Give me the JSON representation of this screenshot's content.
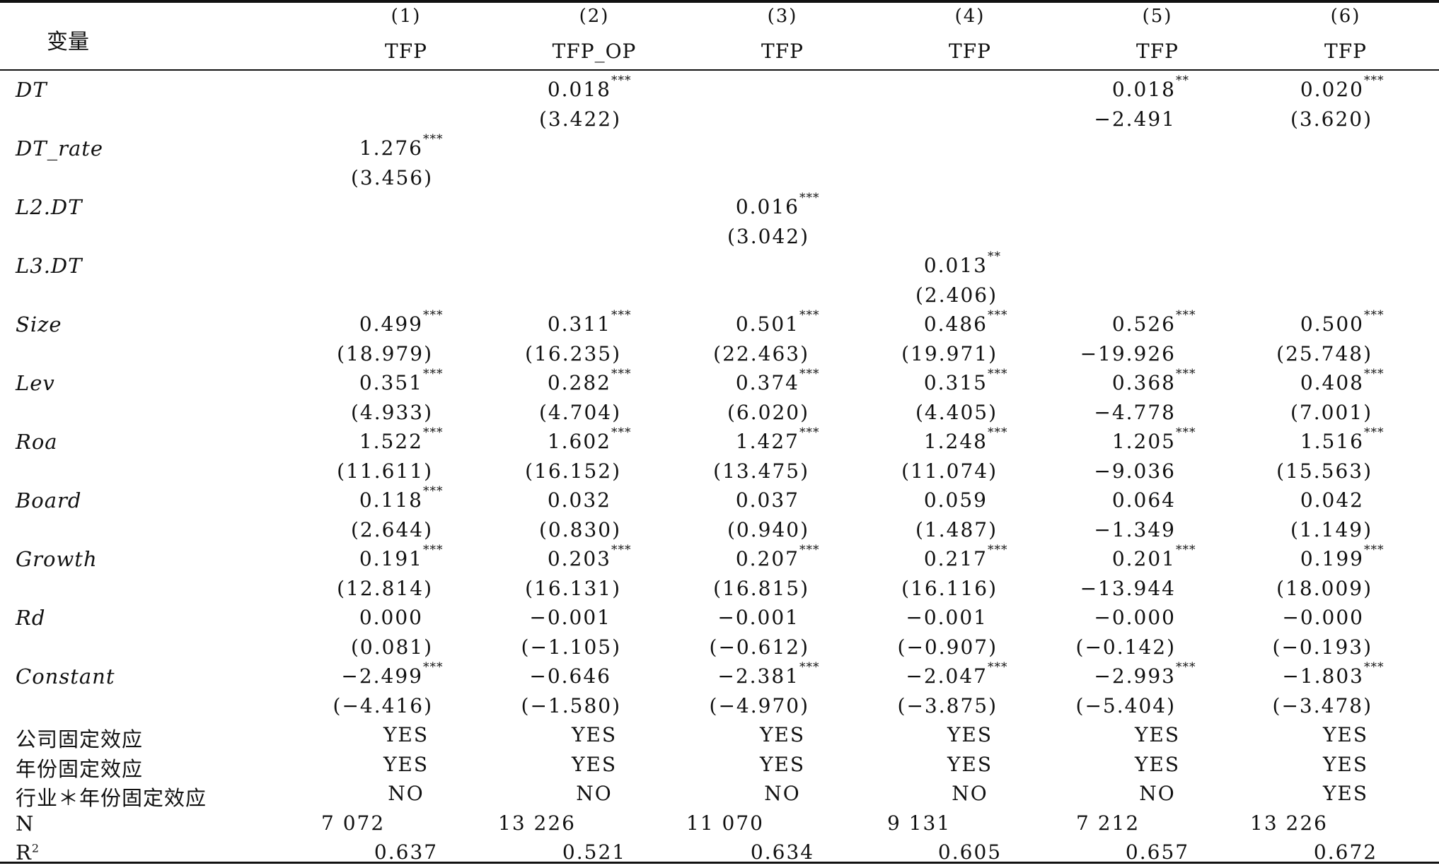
{
  "header": {
    "variable_label": "变量",
    "columns": [
      {
        "num": "(1)",
        "name": "TFP"
      },
      {
        "num": "(2)",
        "name": "TFP_OP"
      },
      {
        "num": "(3)",
        "name": "TFP"
      },
      {
        "num": "(4)",
        "name": "TFP"
      },
      {
        "num": "(5)",
        "name": "TFP"
      },
      {
        "num": "(6)",
        "name": "TFP"
      }
    ]
  },
  "rows": [
    {
      "label": "DT",
      "coef": [
        "",
        "0.018",
        "",
        "",
        "0.018",
        "0.020"
      ],
      "stars": [
        "",
        "***",
        "",
        "",
        "**",
        "***"
      ],
      "tstat": [
        "",
        "(3.422)",
        "",
        "",
        "−2.491",
        "(3.620)"
      ]
    },
    {
      "label": "DT_rate",
      "coef": [
        "1.276",
        "",
        "",
        "",
        "",
        ""
      ],
      "stars": [
        "***",
        "",
        "",
        "",
        "",
        ""
      ],
      "tstat": [
        "(3.456)",
        "",
        "",
        "",
        "",
        ""
      ]
    },
    {
      "label": "L2.DT",
      "coef": [
        "",
        "",
        "0.016",
        "",
        "",
        ""
      ],
      "stars": [
        "",
        "",
        "***",
        "",
        "",
        ""
      ],
      "tstat": [
        "",
        "",
        "(3.042)",
        "",
        "",
        ""
      ]
    },
    {
      "label": "L3.DT",
      "coef": [
        "",
        "",
        "",
        "0.013",
        "",
        ""
      ],
      "stars": [
        "",
        "",
        "",
        "**",
        "",
        ""
      ],
      "tstat": [
        "",
        "",
        "",
        "(2.406)",
        "",
        ""
      ]
    },
    {
      "label": "Size",
      "coef": [
        "0.499",
        "0.311",
        "0.501",
        "0.486",
        "0.526",
        "0.500"
      ],
      "stars": [
        "***",
        "***",
        "***",
        "***",
        "***",
        "***"
      ],
      "tstat": [
        "(18.979)",
        "(16.235)",
        "(22.463)",
        "(19.971)",
        "−19.926",
        "(25.748)"
      ]
    },
    {
      "label": "Lev",
      "coef": [
        "0.351",
        "0.282",
        "0.374",
        "0.315",
        "0.368",
        "0.408"
      ],
      "stars": [
        "***",
        "***",
        "***",
        "***",
        "***",
        "***"
      ],
      "tstat": [
        "(4.933)",
        "(4.704)",
        "(6.020)",
        "(4.405)",
        "−4.778",
        "(7.001)"
      ]
    },
    {
      "label": "Roa",
      "coef": [
        "1.522",
        "1.602",
        "1.427",
        "1.248",
        "1.205",
        "1.516"
      ],
      "stars": [
        "***",
        "***",
        "***",
        "***",
        "***",
        "***"
      ],
      "tstat": [
        "(11.611)",
        "(16.152)",
        "(13.475)",
        "(11.074)",
        "−9.036",
        "(15.563)"
      ]
    },
    {
      "label": "Board",
      "coef": [
        "0.118",
        "0.032",
        "0.037",
        "0.059",
        "0.064",
        "0.042"
      ],
      "stars": [
        "***",
        "",
        "",
        "",
        "",
        ""
      ],
      "tstat": [
        "(2.644)",
        "(0.830)",
        "(0.940)",
        "(1.487)",
        "−1.349",
        "(1.149)"
      ]
    },
    {
      "label": "Growth",
      "coef": [
        "0.191",
        "0.203",
        "0.207",
        "0.217",
        "0.201",
        "0.199"
      ],
      "stars": [
        "***",
        "***",
        "***",
        "***",
        "***",
        "***"
      ],
      "tstat": [
        "(12.814)",
        "(16.131)",
        "(16.815)",
        "(16.116)",
        "−13.944",
        "(18.009)"
      ]
    },
    {
      "label": "Rd",
      "coef": [
        "0.000",
        "−0.001",
        "−0.001",
        "−0.001",
        "−0.000",
        "−0.000"
      ],
      "stars": [
        "",
        "",
        "",
        "",
        "",
        ""
      ],
      "tstat": [
        "(0.081)",
        "(−1.105)",
        "(−0.612)",
        "(−0.907)",
        "(−0.142)",
        "(−0.193)"
      ]
    },
    {
      "label": "Constant",
      "coef": [
        "−2.499",
        "−0.646",
        "−2.381",
        "−2.047",
        "−2.993",
        "−1.803"
      ],
      "stars": [
        "***",
        "",
        "***",
        "***",
        "***",
        "***"
      ],
      "tstat": [
        "(−4.416)",
        "(−1.580)",
        "(−4.970)",
        "(−3.875)",
        "(−5.404)",
        "(−3.478)"
      ]
    }
  ],
  "fixed_effects": [
    {
      "label": "公司固定效应",
      "values": [
        "YES",
        "YES",
        "YES",
        "YES",
        "YES",
        "YES"
      ]
    },
    {
      "label": "年份固定效应",
      "values": [
        "YES",
        "YES",
        "YES",
        "YES",
        "YES",
        "YES"
      ]
    },
    {
      "label": "行业＊年份固定效应",
      "values": [
        "NO",
        "NO",
        "NO",
        "NO",
        "NO",
        "YES"
      ]
    }
  ],
  "n_row": {
    "label": "N",
    "values": [
      "7 072",
      "13 226",
      "11 070",
      "9 131",
      "7 212",
      "13 226"
    ]
  },
  "r2_row": {
    "label": "R",
    "label_sup": "2",
    "values": [
      "0.637",
      "0.521",
      "0.634",
      "0.605",
      "0.657",
      "0.672"
    ]
  }
}
